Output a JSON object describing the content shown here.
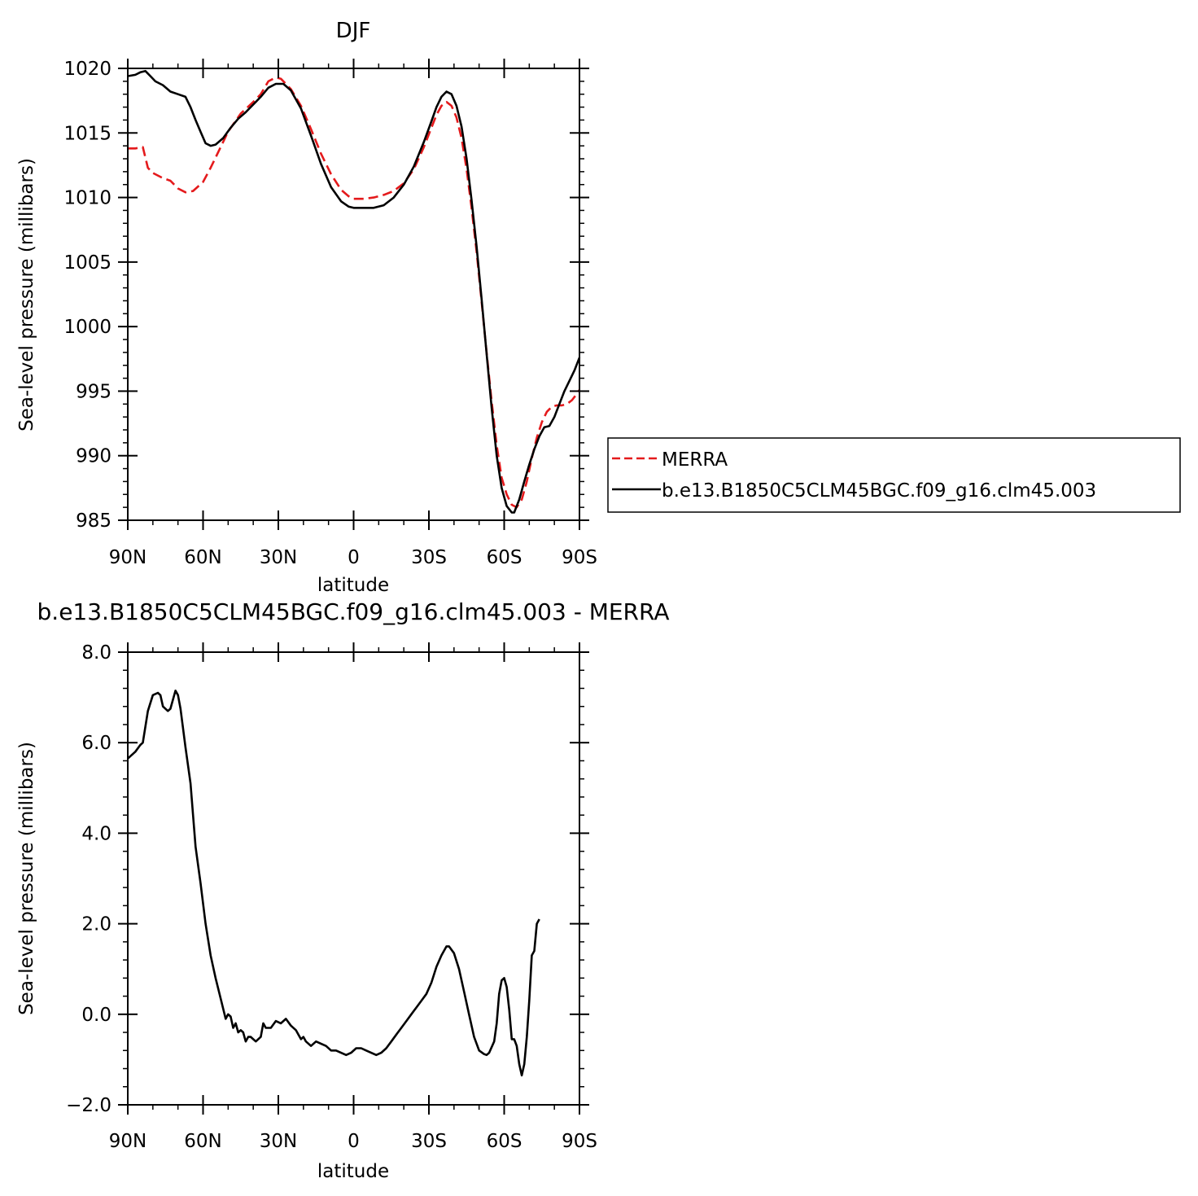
{
  "chart_data": [
    {
      "type": "line",
      "title": "DJF",
      "xlabel": "latitude",
      "ylabel": "Sea-level pressure (millibars)",
      "xlim": [
        90,
        -90
      ],
      "ylim": [
        985,
        1020
      ],
      "x_ticks": [
        90,
        60,
        30,
        0,
        -30,
        -60,
        -90
      ],
      "x_tick_labels": [
        "90N",
        "60N",
        "30N",
        "0",
        "30S",
        "60S",
        "90S"
      ],
      "y_ticks": [
        985,
        990,
        995,
        1000,
        1005,
        1010,
        1015,
        1020
      ],
      "y_tick_labels": [
        "985",
        "990",
        "995",
        "1000",
        "1005",
        "1010",
        "1015",
        "1020"
      ],
      "grid": false,
      "legend_position": "right",
      "series": [
        {
          "name": "MERRA",
          "color": "#e41a1c",
          "dash": "dashed",
          "points": [
            [
              90,
              1013.8
            ],
            [
              87,
              1013.8
            ],
            [
              84,
              1013.9
            ],
            [
              82,
              1012.3
            ],
            [
              80,
              1011.9
            ],
            [
              76,
              1011.5
            ],
            [
              73,
              1011.3
            ],
            [
              70,
              1010.7
            ],
            [
              67,
              1010.4
            ],
            [
              64,
              1010.5
            ],
            [
              60,
              1011.2
            ],
            [
              57,
              1012.3
            ],
            [
              53,
              1013.9
            ],
            [
              50,
              1015.1
            ],
            [
              45,
              1016.5
            ],
            [
              40,
              1017.4
            ],
            [
              37,
              1018.0
            ],
            [
              34,
              1019.0
            ],
            [
              31,
              1019.3
            ],
            [
              29,
              1019.2
            ],
            [
              25,
              1018.4
            ],
            [
              21,
              1017.1
            ],
            [
              17,
              1015.3
            ],
            [
              13,
              1013.4
            ],
            [
              9,
              1011.8
            ],
            [
              5,
              1010.6
            ],
            [
              2,
              1010.1
            ],
            [
              0,
              1009.9
            ],
            [
              -4,
              1009.9
            ],
            [
              -8,
              1010.0
            ],
            [
              -12,
              1010.2
            ],
            [
              -16,
              1010.5
            ],
            [
              -20,
              1011.1
            ],
            [
              -24,
              1012.2
            ],
            [
              -28,
              1013.9
            ],
            [
              -31,
              1015.4
            ],
            [
              -33,
              1016.4
            ],
            [
              -35,
              1017.1
            ],
            [
              -37,
              1017.4
            ],
            [
              -39,
              1017.1
            ],
            [
              -41,
              1016.2
            ],
            [
              -43,
              1014.6
            ],
            [
              -45,
              1012.2
            ],
            [
              -47,
              1009.2
            ],
            [
              -49,
              1005.8
            ],
            [
              -51,
              1001.9
            ],
            [
              -53,
              998.0
            ],
            [
              -55,
              994.2
            ],
            [
              -57,
              990.8
            ],
            [
              -59,
              988.3
            ],
            [
              -61,
              987.0
            ],
            [
              -63,
              986.2
            ],
            [
              -65,
              986.0
            ],
            [
              -67,
              986.6
            ],
            [
              -69,
              988.0
            ],
            [
              -71,
              989.8
            ],
            [
              -73,
              991.4
            ],
            [
              -75,
              992.6
            ],
            [
              -77,
              993.4
            ],
            [
              -79,
              993.8
            ],
            [
              -81,
              993.9
            ],
            [
              -83,
              993.9
            ],
            [
              -85,
              994.0
            ],
            [
              -87,
              994.3
            ],
            [
              -89,
              994.8
            ],
            [
              -90,
              995.1
            ]
          ]
        },
        {
          "name": "b.e13.B1850C5CLM45BGC.f09_g16.clm45.003",
          "color": "#000000",
          "dash": "solid",
          "points": [
            [
              90,
              1019.4
            ],
            [
              87,
              1019.5
            ],
            [
              85,
              1019.7
            ],
            [
              83,
              1019.8
            ],
            [
              81,
              1019.4
            ],
            [
              79,
              1019.0
            ],
            [
              76,
              1018.7
            ],
            [
              73,
              1018.2
            ],
            [
              70,
              1018.0
            ],
            [
              67,
              1017.8
            ],
            [
              65,
              1017.0
            ],
            [
              63,
              1016.0
            ],
            [
              61,
              1015.1
            ],
            [
              59,
              1014.2
            ],
            [
              57,
              1014.0
            ],
            [
              55,
              1014.1
            ],
            [
              52,
              1014.6
            ],
            [
              49,
              1015.4
            ],
            [
              46,
              1016.1
            ],
            [
              43,
              1016.6
            ],
            [
              40,
              1017.2
            ],
            [
              37,
              1017.8
            ],
            [
              34,
              1018.5
            ],
            [
              31,
              1018.8
            ],
            [
              28,
              1018.8
            ],
            [
              25,
              1018.3
            ],
            [
              21,
              1016.9
            ],
            [
              17,
              1014.8
            ],
            [
              13,
              1012.6
            ],
            [
              9,
              1010.8
            ],
            [
              5,
              1009.7
            ],
            [
              2,
              1009.3
            ],
            [
              0,
              1009.2
            ],
            [
              -4,
              1009.2
            ],
            [
              -8,
              1009.2
            ],
            [
              -12,
              1009.4
            ],
            [
              -16,
              1010.0
            ],
            [
              -20,
              1011.0
            ],
            [
              -24,
              1012.4
            ],
            [
              -28,
              1014.3
            ],
            [
              -31,
              1015.9
            ],
            [
              -33,
              1017.0
            ],
            [
              -35,
              1017.8
            ],
            [
              -37,
              1018.2
            ],
            [
              -39,
              1018.0
            ],
            [
              -41,
              1017.1
            ],
            [
              -43,
              1015.5
            ],
            [
              -45,
              1013.0
            ],
            [
              -47,
              1009.8
            ],
            [
              -49,
              1006.2
            ],
            [
              -51,
              1002.1
            ],
            [
              -53,
              997.9
            ],
            [
              -55,
              993.7
            ],
            [
              -57,
              990.0
            ],
            [
              -59,
              987.5
            ],
            [
              -61,
              986.1
            ],
            [
              -63,
              985.6
            ],
            [
              -64,
              985.6
            ],
            [
              -66,
              986.6
            ],
            [
              -68,
              988.0
            ],
            [
              -70,
              989.3
            ],
            [
              -72,
              990.5
            ],
            [
              -74,
              991.5
            ],
            [
              -76,
              992.2
            ],
            [
              -78,
              992.3
            ],
            [
              -80,
              993.0
            ],
            [
              -82,
              994.0
            ],
            [
              -84,
              995.0
            ],
            [
              -86,
              995.8
            ],
            [
              -88,
              996.6
            ],
            [
              -90,
              997.6
            ]
          ]
        }
      ]
    },
    {
      "type": "line",
      "title": "b.e13.B1850C5CLM45BGC.f09_g16.clm45.003 - MERRA",
      "xlabel": "latitude",
      "ylabel": "Sea-level pressure (millibars)",
      "xlim": [
        90,
        -90
      ],
      "ylim": [
        -2.0,
        8.0
      ],
      "x_ticks": [
        90,
        60,
        30,
        0,
        -30,
        -60,
        -90
      ],
      "x_tick_labels": [
        "90N",
        "60N",
        "30N",
        "0",
        "30S",
        "60S",
        "90S"
      ],
      "y_ticks": [
        -2.0,
        0.0,
        2.0,
        4.0,
        6.0,
        8.0
      ],
      "y_tick_labels": [
        "−2.0",
        "0.0",
        "2.0",
        "4.0",
        "6.0",
        "8.0"
      ],
      "grid": false,
      "series": [
        {
          "color": "#000000",
          "dash": "solid",
          "points": [
            [
              90,
              5.65
            ],
            [
              87,
              5.8
            ],
            [
              85,
              5.95
            ],
            [
              84,
              6.0
            ],
            [
              82,
              6.7
            ],
            [
              80,
              7.05
            ],
            [
              78,
              7.1
            ],
            [
              77,
              7.05
            ],
            [
              76,
              6.8
            ],
            [
              74,
              6.7
            ],
            [
              73,
              6.75
            ],
            [
              71,
              7.15
            ],
            [
              70,
              7.05
            ],
            [
              69,
              6.75
            ],
            [
              67,
              5.9
            ],
            [
              65,
              5.1
            ],
            [
              63,
              3.7
            ],
            [
              61,
              2.9
            ],
            [
              59,
              2.0
            ],
            [
              57,
              1.3
            ],
            [
              55,
              0.8
            ],
            [
              53,
              0.35
            ],
            [
              51,
              -0.1
            ],
            [
              50,
              0.0
            ],
            [
              49,
              -0.05
            ],
            [
              48,
              -0.3
            ],
            [
              47,
              -0.2
            ],
            [
              46,
              -0.4
            ],
            [
              45,
              -0.35
            ],
            [
              44,
              -0.4
            ],
            [
              43,
              -0.6
            ],
            [
              42,
              -0.5
            ],
            [
              41,
              -0.5
            ],
            [
              39,
              -0.6
            ],
            [
              37,
              -0.5
            ],
            [
              36,
              -0.2
            ],
            [
              35,
              -0.3
            ],
            [
              33,
              -0.3
            ],
            [
              31,
              -0.15
            ],
            [
              29,
              -0.2
            ],
            [
              27,
              -0.1
            ],
            [
              25,
              -0.25
            ],
            [
              23,
              -0.35
            ],
            [
              21,
              -0.55
            ],
            [
              20,
              -0.5
            ],
            [
              19,
              -0.6
            ],
            [
              17,
              -0.7
            ],
            [
              15,
              -0.6
            ],
            [
              13,
              -0.65
            ],
            [
              11,
              -0.7
            ],
            [
              9,
              -0.8
            ],
            [
              7,
              -0.8
            ],
            [
              5,
              -0.85
            ],
            [
              3,
              -0.9
            ],
            [
              1,
              -0.85
            ],
            [
              -1,
              -0.75
            ],
            [
              -3,
              -0.75
            ],
            [
              -5,
              -0.8
            ],
            [
              -7,
              -0.85
            ],
            [
              -9,
              -0.9
            ],
            [
              -11,
              -0.85
            ],
            [
              -13,
              -0.75
            ],
            [
              -15,
              -0.6
            ],
            [
              -17,
              -0.45
            ],
            [
              -19,
              -0.3
            ],
            [
              -21,
              -0.15
            ],
            [
              -23,
              0.0
            ],
            [
              -25,
              0.15
            ],
            [
              -27,
              0.3
            ],
            [
              -29,
              0.45
            ],
            [
              -31,
              0.7
            ],
            [
              -33,
              1.05
            ],
            [
              -35,
              1.3
            ],
            [
              -37,
              1.5
            ],
            [
              -38,
              1.5
            ],
            [
              -40,
              1.35
            ],
            [
              -42,
              1.0
            ],
            [
              -44,
              0.5
            ],
            [
              -46,
              0.0
            ],
            [
              -48,
              -0.5
            ],
            [
              -50,
              -0.8
            ],
            [
              -52,
              -0.88
            ],
            [
              -53,
              -0.9
            ],
            [
              -54,
              -0.85
            ],
            [
              -56,
              -0.6
            ],
            [
              -57,
              -0.2
            ],
            [
              -58,
              0.45
            ],
            [
              -59,
              0.75
            ],
            [
              -60,
              0.8
            ],
            [
              -61,
              0.6
            ],
            [
              -62,
              0.1
            ],
            [
              -63,
              -0.55
            ],
            [
              -64,
              -0.55
            ],
            [
              -65,
              -0.7
            ],
            [
              -66,
              -1.1
            ],
            [
              -67,
              -1.35
            ],
            [
              -68,
              -1.1
            ],
            [
              -69,
              -0.5
            ],
            [
              -70,
              0.3
            ],
            [
              -71,
              1.3
            ],
            [
              -72,
              1.4
            ],
            [
              -73,
              2.0
            ],
            [
              -74,
              2.1
            ]
          ]
        }
      ]
    }
  ]
}
